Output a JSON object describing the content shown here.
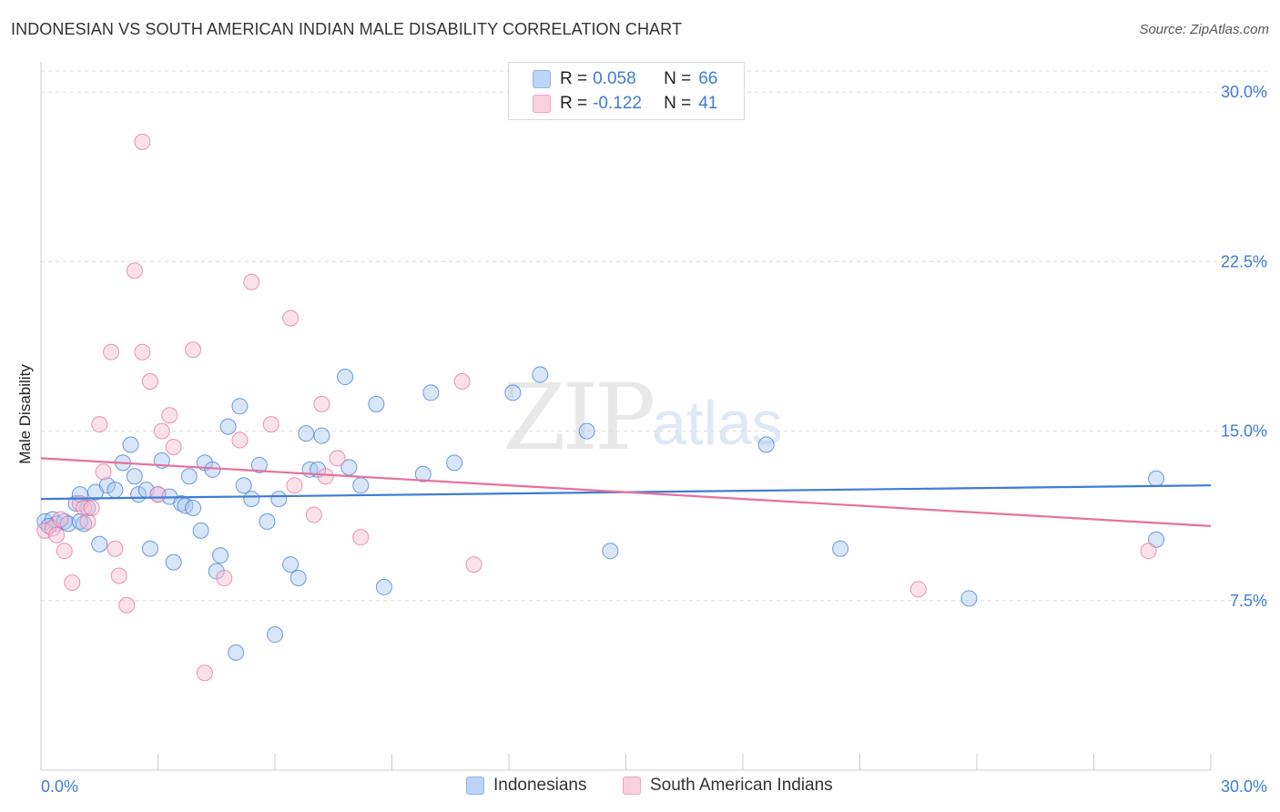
{
  "header": {
    "title": "INDONESIAN VS SOUTH AMERICAN INDIAN MALE DISABILITY CORRELATION CHART",
    "source": "Source: ZipAtlas.com"
  },
  "watermark": {
    "zip": "ZIP",
    "atlas": "atlas"
  },
  "legend": {
    "rows": [
      {
        "r_label": "R =",
        "r_value": "0.058",
        "n_label": "N =",
        "n_value": "66",
        "color": "#8fb5ea"
      },
      {
        "r_label": "R =",
        "r_value": "-0.122",
        "n_label": "N =",
        "n_value": "41",
        "color": "#f2a6bf"
      }
    ]
  },
  "bottom_legend": [
    {
      "label": "Indonesians",
      "color": "#8fb5ea"
    },
    {
      "label": "South American Indians",
      "color": "#f2a6bf"
    }
  ],
  "chart_data": {
    "type": "scatter",
    "title": "INDONESIAN VS SOUTH AMERICAN INDIAN MALE DISABILITY CORRELATION CHART",
    "xlabel": "",
    "ylabel": "Male Disability",
    "xlim": [
      0,
      30
    ],
    "ylim": [
      0,
      31.5
    ],
    "x_tick_labels": [
      "0.0%",
      "30.0%"
    ],
    "y_ticks": [
      7.5,
      15.0,
      22.5,
      30.0
    ],
    "y_tick_labels": [
      "7.5%",
      "15.0%",
      "22.5%",
      "30.0%"
    ],
    "grid": true,
    "series": [
      {
        "name": "Indonesians",
        "color": "#3d7cd6",
        "fill": "#a9c7f0",
        "trend": {
          "x": [
            0,
            30
          ],
          "y": [
            12.0,
            12.6
          ]
        },
        "points": [
          [
            0.1,
            11.0
          ],
          [
            0.3,
            11.1
          ],
          [
            0.4,
            10.9
          ],
          [
            0.6,
            11.0
          ],
          [
            0.7,
            10.9
          ],
          [
            0.9,
            11.8
          ],
          [
            1.0,
            12.2
          ],
          [
            1.1,
            10.9
          ],
          [
            1.2,
            11.6
          ],
          [
            1.4,
            12.3
          ],
          [
            1.5,
            10.0
          ],
          [
            1.7,
            12.6
          ],
          [
            1.9,
            12.4
          ],
          [
            2.1,
            13.6
          ],
          [
            2.3,
            14.4
          ],
          [
            2.4,
            13.0
          ],
          [
            2.5,
            12.2
          ],
          [
            2.7,
            12.4
          ],
          [
            2.8,
            9.8
          ],
          [
            3.0,
            12.2
          ],
          [
            3.1,
            13.7
          ],
          [
            3.3,
            12.1
          ],
          [
            3.4,
            9.2
          ],
          [
            3.6,
            11.8
          ],
          [
            3.7,
            11.7
          ],
          [
            3.8,
            13.0
          ],
          [
            3.9,
            11.6
          ],
          [
            4.1,
            10.6
          ],
          [
            4.2,
            13.6
          ],
          [
            4.4,
            13.3
          ],
          [
            4.5,
            8.8
          ],
          [
            4.6,
            9.5
          ],
          [
            4.8,
            15.2
          ],
          [
            5.0,
            5.2
          ],
          [
            5.1,
            16.1
          ],
          [
            5.2,
            12.6
          ],
          [
            5.4,
            12.0
          ],
          [
            5.6,
            13.5
          ],
          [
            5.8,
            11.0
          ],
          [
            6.0,
            6.0
          ],
          [
            6.1,
            12.0
          ],
          [
            6.4,
            9.1
          ],
          [
            6.6,
            8.5
          ],
          [
            6.8,
            14.9
          ],
          [
            6.9,
            13.3
          ],
          [
            7.1,
            13.3
          ],
          [
            7.2,
            14.8
          ],
          [
            7.8,
            17.4
          ],
          [
            7.9,
            13.4
          ],
          [
            8.2,
            12.6
          ],
          [
            8.6,
            16.2
          ],
          [
            8.8,
            8.1
          ],
          [
            9.8,
            13.1
          ],
          [
            10.0,
            16.7
          ],
          [
            10.6,
            13.6
          ],
          [
            12.1,
            16.7
          ],
          [
            12.8,
            17.5
          ],
          [
            14.0,
            15.0
          ],
          [
            14.6,
            9.7
          ],
          [
            18.6,
            14.4
          ],
          [
            20.5,
            9.8
          ],
          [
            23.8,
            7.6
          ],
          [
            28.6,
            12.9
          ],
          [
            28.6,
            10.2
          ],
          [
            0.2,
            10.8
          ],
          [
            1.0,
            11.0
          ]
        ]
      },
      {
        "name": "South American Indians",
        "color": "#e8709b",
        "fill": "#f7bfd1",
        "trend": {
          "x": [
            0,
            30
          ],
          "y": [
            13.8,
            10.8
          ]
        },
        "points": [
          [
            0.1,
            10.6
          ],
          [
            0.3,
            10.7
          ],
          [
            0.4,
            10.4
          ],
          [
            0.5,
            11.1
          ],
          [
            0.6,
            9.7
          ],
          [
            0.8,
            8.3
          ],
          [
            1.0,
            11.8
          ],
          [
            1.1,
            11.6
          ],
          [
            1.2,
            11.0
          ],
          [
            1.3,
            11.6
          ],
          [
            1.5,
            15.3
          ],
          [
            1.6,
            13.2
          ],
          [
            1.8,
            18.5
          ],
          [
            1.9,
            9.8
          ],
          [
            2.0,
            8.6
          ],
          [
            2.2,
            7.3
          ],
          [
            2.4,
            22.1
          ],
          [
            2.6,
            18.5
          ],
          [
            2.6,
            27.8
          ],
          [
            2.8,
            17.2
          ],
          [
            3.0,
            12.2
          ],
          [
            3.1,
            15.0
          ],
          [
            3.3,
            15.7
          ],
          [
            3.4,
            14.3
          ],
          [
            3.9,
            18.6
          ],
          [
            4.2,
            4.3
          ],
          [
            4.7,
            8.5
          ],
          [
            5.1,
            14.6
          ],
          [
            5.4,
            21.6
          ],
          [
            5.9,
            15.3
          ],
          [
            6.4,
            20.0
          ],
          [
            6.5,
            12.6
          ],
          [
            7.0,
            11.3
          ],
          [
            7.2,
            16.2
          ],
          [
            7.3,
            13.0
          ],
          [
            7.6,
            13.8
          ],
          [
            8.2,
            10.3
          ],
          [
            10.8,
            17.2
          ],
          [
            11.1,
            9.1
          ],
          [
            22.5,
            8.0
          ],
          [
            28.4,
            9.7
          ]
        ]
      }
    ]
  }
}
